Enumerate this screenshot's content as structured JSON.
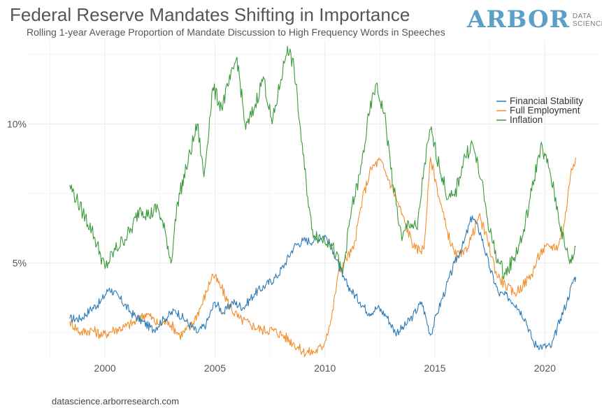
{
  "header": {
    "title": "Federal Reserve Mandates Shifting in Importance",
    "subtitle": "Rolling 1-year Average Proportion of Mandate Discussion to High Frequency Words in Speeches"
  },
  "logo": {
    "main": "ARBOR",
    "line1": "DATA",
    "line2": "SCIENCE"
  },
  "footer": {
    "source": "datascience.arborresearch.com"
  },
  "chart_data": {
    "type": "line",
    "xlim": [
      1996.5,
      2022.5
    ],
    "ylim": [
      1.6,
      13.0
    ],
    "x_ticks": [
      2000,
      2005,
      2010,
      2015,
      2020
    ],
    "x_tick_labels": [
      "2000",
      "2005",
      "2010",
      "2015",
      "2020"
    ],
    "y_ticks": [
      5,
      10
    ],
    "y_tick_labels": [
      "5%",
      "10%"
    ],
    "grid": true,
    "legend": {
      "position": "top-right"
    },
    "series": [
      {
        "name": "Financial Stability",
        "color": "#2c7bb6",
        "points": [
          [
            1998.4,
            3.0
          ],
          [
            1998.9,
            3.0
          ],
          [
            1999.3,
            3.3
          ],
          [
            1999.8,
            3.6
          ],
          [
            2000.2,
            4.1
          ],
          [
            2000.7,
            3.7
          ],
          [
            2001.2,
            3.2
          ],
          [
            2001.7,
            2.9
          ],
          [
            2002.2,
            2.6
          ],
          [
            2002.7,
            3.0
          ],
          [
            2003.2,
            3.3
          ],
          [
            2003.7,
            2.9
          ],
          [
            2004.2,
            2.5
          ],
          [
            2004.6,
            2.8
          ],
          [
            2005.0,
            3.6
          ],
          [
            2005.4,
            3.2
          ],
          [
            2005.8,
            3.6
          ],
          [
            2006.3,
            3.4
          ],
          [
            2006.8,
            3.9
          ],
          [
            2007.3,
            4.2
          ],
          [
            2007.8,
            4.5
          ],
          [
            2008.2,
            5.0
          ],
          [
            2008.6,
            5.6
          ],
          [
            2009.0,
            5.8
          ],
          [
            2009.5,
            5.8
          ],
          [
            2010.0,
            6.0
          ],
          [
            2010.4,
            5.4
          ],
          [
            2010.8,
            4.5
          ],
          [
            2011.2,
            4.0
          ],
          [
            2011.6,
            3.6
          ],
          [
            2012.0,
            3.2
          ],
          [
            2012.4,
            3.4
          ],
          [
            2012.8,
            3.1
          ],
          [
            2013.2,
            2.5
          ],
          [
            2013.6,
            2.7
          ],
          [
            2014.0,
            3.1
          ],
          [
            2014.4,
            3.6
          ],
          [
            2014.8,
            2.4
          ],
          [
            2015.1,
            3.2
          ],
          [
            2015.5,
            4.1
          ],
          [
            2015.9,
            5.0
          ],
          [
            2016.3,
            5.7
          ],
          [
            2016.7,
            6.7
          ],
          [
            2017.1,
            6.0
          ],
          [
            2017.5,
            4.8
          ],
          [
            2017.9,
            3.9
          ],
          [
            2018.3,
            3.8
          ],
          [
            2018.7,
            3.5
          ],
          [
            2019.1,
            3.0
          ],
          [
            2019.5,
            2.1
          ],
          [
            2019.9,
            2.0
          ],
          [
            2020.3,
            2.0
          ],
          [
            2020.7,
            3.0
          ],
          [
            2021.0,
            3.6
          ],
          [
            2021.3,
            4.4
          ],
          [
            2021.4,
            4.5
          ]
        ]
      },
      {
        "name": "Full Employment",
        "color": "#f28e2b",
        "points": [
          [
            1998.4,
            2.9
          ],
          [
            1998.9,
            2.5
          ],
          [
            1999.4,
            2.6
          ],
          [
            1999.9,
            2.4
          ],
          [
            2000.4,
            2.6
          ],
          [
            2000.9,
            2.7
          ],
          [
            2001.4,
            2.9
          ],
          [
            2001.9,
            3.2
          ],
          [
            2002.4,
            2.8
          ],
          [
            2002.9,
            2.9
          ],
          [
            2003.4,
            2.4
          ],
          [
            2003.9,
            2.7
          ],
          [
            2004.4,
            3.5
          ],
          [
            2004.9,
            4.6
          ],
          [
            2005.3,
            4.1
          ],
          [
            2005.7,
            3.4
          ],
          [
            2006.1,
            3.0
          ],
          [
            2006.6,
            2.8
          ],
          [
            2007.1,
            2.6
          ],
          [
            2007.6,
            2.6
          ],
          [
            2008.1,
            2.4
          ],
          [
            2008.6,
            2.1
          ],
          [
            2009.0,
            1.8
          ],
          [
            2009.5,
            1.8
          ],
          [
            2009.9,
            2.0
          ],
          [
            2010.3,
            3.0
          ],
          [
            2010.6,
            4.6
          ],
          [
            2010.9,
            5.1
          ],
          [
            2011.3,
            5.5
          ],
          [
            2011.7,
            7.3
          ],
          [
            2012.1,
            8.4
          ],
          [
            2012.5,
            8.7
          ],
          [
            2012.9,
            8.0
          ],
          [
            2013.3,
            7.2
          ],
          [
            2013.7,
            6.3
          ],
          [
            2014.1,
            5.5
          ],
          [
            2014.5,
            5.5
          ],
          [
            2014.8,
            8.8
          ],
          [
            2015.1,
            7.7
          ],
          [
            2015.5,
            6.3
          ],
          [
            2015.9,
            5.3
          ],
          [
            2016.3,
            5.3
          ],
          [
            2016.7,
            6.0
          ],
          [
            2017.0,
            6.7
          ],
          [
            2017.4,
            5.8
          ],
          [
            2017.8,
            4.6
          ],
          [
            2018.2,
            4.2
          ],
          [
            2018.6,
            3.9
          ],
          [
            2019.0,
            4.2
          ],
          [
            2019.4,
            4.6
          ],
          [
            2019.8,
            5.4
          ],
          [
            2020.2,
            5.6
          ],
          [
            2020.6,
            5.6
          ],
          [
            2020.9,
            6.5
          ],
          [
            2021.2,
            8.4
          ],
          [
            2021.4,
            8.8
          ]
        ]
      },
      {
        "name": "Inflation",
        "color": "#3a9a3a",
        "points": [
          [
            1998.4,
            7.8
          ],
          [
            1998.7,
            7.3
          ],
          [
            1999.0,
            6.8
          ],
          [
            1999.4,
            6.2
          ],
          [
            1999.8,
            5.3
          ],
          [
            2000.0,
            4.8
          ],
          [
            2000.4,
            5.4
          ],
          [
            2000.8,
            5.8
          ],
          [
            2001.2,
            6.2
          ],
          [
            2001.6,
            7.0
          ],
          [
            2002.0,
            6.7
          ],
          [
            2002.4,
            7.0
          ],
          [
            2002.8,
            5.9
          ],
          [
            2003.0,
            5.0
          ],
          [
            2003.3,
            7.2
          ],
          [
            2003.7,
            8.4
          ],
          [
            2004.2,
            10.0
          ],
          [
            2004.5,
            8.1
          ],
          [
            2004.9,
            11.3
          ],
          [
            2005.3,
            10.6
          ],
          [
            2005.7,
            11.6
          ],
          [
            2006.0,
            12.4
          ],
          [
            2006.4,
            9.8
          ],
          [
            2006.8,
            10.6
          ],
          [
            2007.2,
            11.7
          ],
          [
            2007.6,
            10.0
          ],
          [
            2008.0,
            11.6
          ],
          [
            2008.3,
            12.8
          ],
          [
            2008.6,
            12.0
          ],
          [
            2009.0,
            8.9
          ],
          [
            2009.4,
            6.2
          ],
          [
            2009.8,
            5.9
          ],
          [
            2010.2,
            5.8
          ],
          [
            2010.5,
            5.3
          ],
          [
            2010.8,
            4.6
          ],
          [
            2011.2,
            6.9
          ],
          [
            2011.6,
            8.2
          ],
          [
            2012.0,
            10.3
          ],
          [
            2012.3,
            11.4
          ],
          [
            2012.7,
            10.4
          ],
          [
            2013.1,
            7.8
          ],
          [
            2013.5,
            5.8
          ],
          [
            2013.8,
            6.5
          ],
          [
            2014.2,
            6.2
          ],
          [
            2014.5,
            8.4
          ],
          [
            2014.8,
            9.8
          ],
          [
            2015.2,
            8.5
          ],
          [
            2015.6,
            7.3
          ],
          [
            2015.9,
            7.4
          ],
          [
            2016.3,
            8.7
          ],
          [
            2016.7,
            9.3
          ],
          [
            2017.1,
            8.0
          ],
          [
            2017.5,
            6.1
          ],
          [
            2017.9,
            5.0
          ],
          [
            2018.2,
            4.6
          ],
          [
            2018.6,
            5.2
          ],
          [
            2019.0,
            6.0
          ],
          [
            2019.4,
            7.6
          ],
          [
            2019.8,
            9.2
          ],
          [
            2020.2,
            8.4
          ],
          [
            2020.6,
            6.8
          ],
          [
            2020.9,
            5.6
          ],
          [
            2021.2,
            5.0
          ],
          [
            2021.4,
            5.6
          ]
        ]
      }
    ]
  }
}
